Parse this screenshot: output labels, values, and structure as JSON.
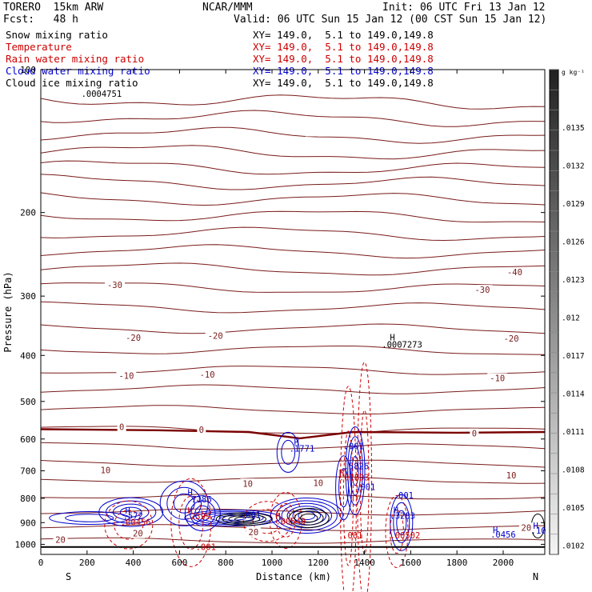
{
  "header": {
    "model": "TORERO  15km ARW",
    "org": "NCAR/MMM",
    "init": "Init: 06 UTC Fri 13 Jan 12",
    "fcst": "Fcst:   48 h",
    "valid": "Valid: 06 UTC Sun 15 Jan 12 (00 CST Sun 15 Jan 12)"
  },
  "fields": [
    {
      "name": "Snow mixing ratio",
      "xy": "XY= 149.0,  5.1 to 149.0,149.8",
      "color": "#000000"
    },
    {
      "name": "Temperature",
      "xy": "XY= 149.0,  5.1 to 149.0,149.8",
      "color": "#cc0000"
    },
    {
      "name": "Rain water mixing ratio",
      "xy": "XY= 149.0,  5.1 to 149.0,149.8",
      "color": "#cc0000"
    },
    {
      "name": "Cloud water mixing ratio",
      "xy": "XY= 149.0,  5.1 to 149.0,149.8",
      "color": "#0000cc"
    },
    {
      "name": "Cloud ice mixing ratio",
      "xy": "XY= 149.0,  5.1 to 149.0,149.8",
      "color": "#000000"
    }
  ],
  "chart_data": {
    "type": "cross-section contour",
    "xlabel": "Distance (km)",
    "ylabel": "Pressure (hPa)",
    "xlim": [
      0,
      2180
    ],
    "ylim": [
      1050,
      100
    ],
    "y_scale": "log",
    "x_ticks": [
      0,
      200,
      400,
      600,
      800,
      1000,
      1200,
      1400,
      1600,
      1800,
      2000
    ],
    "y_ticks": [
      200,
      300,
      400,
      500,
      600,
      700,
      800,
      900,
      1000
    ],
    "y_top_label": "100",
    "left_end": "S",
    "right_end": "N",
    "temperature_labels": [
      {
        "x": 320,
        "p": 285,
        "text": "-30"
      },
      {
        "x": 1910,
        "p": 292,
        "text": "-30"
      },
      {
        "x": 2050,
        "p": 268,
        "text": "-40"
      },
      {
        "x": 400,
        "p": 368,
        "text": "-20"
      },
      {
        "x": 755,
        "p": 365,
        "text": "-20"
      },
      {
        "x": 2035,
        "p": 370,
        "text": "-20"
      },
      {
        "x": 370,
        "p": 443,
        "text": "-10"
      },
      {
        "x": 720,
        "p": 440,
        "text": "-10"
      },
      {
        "x": 1975,
        "p": 448,
        "text": "-10"
      },
      {
        "x": 350,
        "p": 568,
        "text": "0"
      },
      {
        "x": 695,
        "p": 575,
        "text": "0"
      },
      {
        "x": 1875,
        "p": 586,
        "text": "0"
      },
      {
        "x": 280,
        "p": 700,
        "text": "10"
      },
      {
        "x": 895,
        "p": 747,
        "text": "10"
      },
      {
        "x": 1200,
        "p": 745,
        "text": "10"
      },
      {
        "x": 2035,
        "p": 718,
        "text": "10"
      },
      {
        "x": 420,
        "p": 952,
        "text": "20"
      },
      {
        "x": 920,
        "p": 945,
        "text": "20"
      },
      {
        "x": 85,
        "p": 982,
        "text": "20"
      },
      {
        "x": 2100,
        "p": 925,
        "text": "20"
      }
    ],
    "temperature_levels_hpa_left": [
      115,
      125,
      136,
      148,
      160,
      172,
      186,
      202,
      220,
      240,
      262,
      287,
      316,
      350,
      388,
      428,
      470,
      518,
      572,
      620,
      672,
      728,
      788,
      852,
      920,
      980
    ],
    "freezing_level": {
      "points": [
        [
          0,
          572
        ],
        [
          500,
          575
        ],
        [
          900,
          580
        ],
        [
          1120,
          598
        ],
        [
          1350,
          580
        ],
        [
          1800,
          582
        ],
        [
          2180,
          580
        ]
      ]
    },
    "annotations": [
      {
        "x": 175,
        "p": 114,
        "text": ".0004751",
        "color": "#000000"
      },
      {
        "x": 1510,
        "p": 372,
        "text": "H",
        "color": "#000000"
      },
      {
        "x": 1475,
        "p": 385,
        "text": ".0007273",
        "color": "#000000"
      },
      {
        "x": 1095,
        "p": 618,
        "text": "H",
        "color": "#0000cc"
      },
      {
        "x": 1075,
        "p": 638,
        "text": ".1771",
        "color": "#0000cc"
      },
      {
        "x": 1310,
        "p": 630,
        "text": ".001",
        "color": "#0000cc"
      },
      {
        "x": 1310,
        "p": 695,
        "text": ".5826",
        "color": "#0000cc"
      },
      {
        "x": 1290,
        "p": 718,
        "text": "H",
        "color": "#cc0000"
      },
      {
        "x": 1290,
        "p": 733,
        "text": ".01893",
        "color": "#cc0000"
      },
      {
        "x": 1360,
        "p": 768,
        "text": ".001",
        "color": "#0000cc"
      },
      {
        "x": 1525,
        "p": 800,
        "text": ".001",
        "color": "#0000cc"
      },
      {
        "x": 1525,
        "p": 860,
        "text": "H",
        "color": "#0000cc"
      },
      {
        "x": 1510,
        "p": 883,
        "text": ".3283",
        "color": "#0000cc"
      },
      {
        "x": 635,
        "p": 790,
        "text": "H",
        "color": "#0000cc"
      },
      {
        "x": 630,
        "p": 816,
        "text": ".7186",
        "color": "#0000cc"
      },
      {
        "x": 635,
        "p": 862,
        "text": "H",
        "color": "#cc0000"
      },
      {
        "x": 625,
        "p": 885,
        "text": ".2399",
        "color": "#cc0000"
      },
      {
        "x": 365,
        "p": 862,
        "text": "H",
        "color": "#0000cc"
      },
      {
        "x": 355,
        "p": 883,
        "text": ".572",
        "color": "#0000cc"
      },
      {
        "x": 345,
        "p": 912,
        "text": ".00456",
        "color": "#cc0000"
      },
      {
        "x": 865,
        "p": 880,
        "text": ".001",
        "color": "#0000cc"
      },
      {
        "x": 1015,
        "p": 885,
        "text": "H",
        "color": "#cc0000"
      },
      {
        "x": 1015,
        "p": 907,
        "text": ".00549",
        "color": "#cc0000"
      },
      {
        "x": 1305,
        "p": 972,
        "text": ".001",
        "color": "#cc0000"
      },
      {
        "x": 1510,
        "p": 972,
        "text": ".00502",
        "color": "#cc0000"
      },
      {
        "x": 670,
        "p": 1028,
        "text": ".001",
        "color": "#cc0000"
      },
      {
        "x": 1955,
        "p": 947,
        "text": "H",
        "color": "#0000cc"
      },
      {
        "x": 1945,
        "p": 968,
        "text": ".0456",
        "color": "#0000cc"
      },
      {
        "x": 2130,
        "p": 928,
        "text": "H",
        "color": "#0000cc"
      },
      {
        "x": 2120,
        "p": 950,
        "text": ".10",
        "color": "#0000cc"
      }
    ],
    "colorbar": {
      "unit": "g kg⁻¹",
      "labels": [
        ".0135",
        ".0132",
        ".0129",
        ".0126",
        ".0123",
        ".012",
        ".0117",
        ".0114",
        ".0111",
        ".0108",
        ".0105",
        ".0102"
      ]
    }
  }
}
